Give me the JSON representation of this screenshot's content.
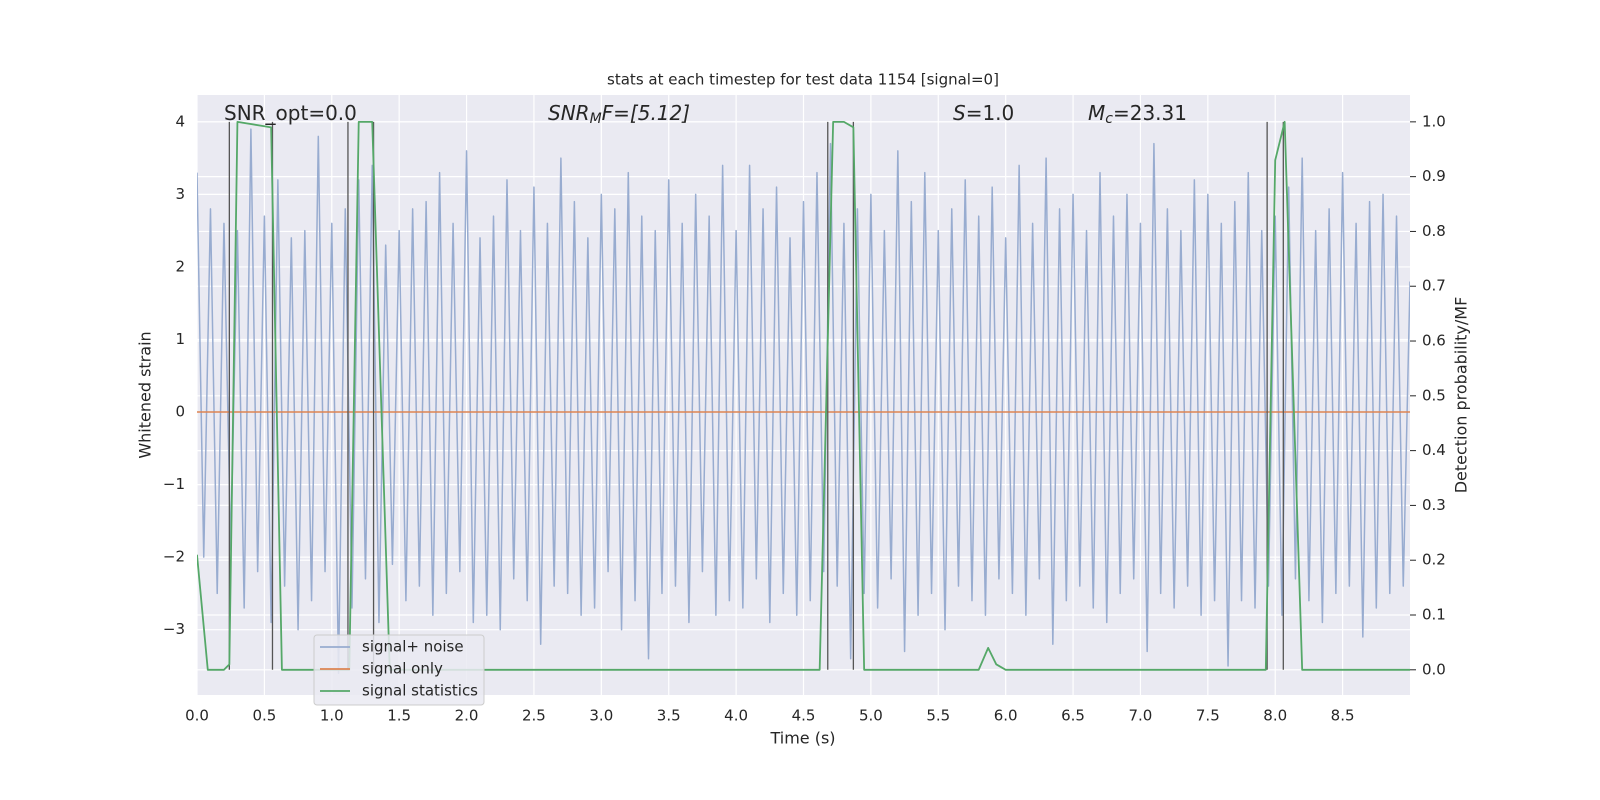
{
  "chart_data": {
    "type": "line",
    "title": "stats at each timestep for test data 1154 [signal=0]",
    "xlabel": "Time (s)",
    "ylabel": "Whitened strain",
    "y2label": "Detection probability/MF",
    "xlim": [
      0,
      9.0
    ],
    "ylim": [
      -3.9,
      4.37
    ],
    "y2lim": [
      -0.046,
      1.049
    ],
    "xticks": [
      {
        "value": 0,
        "label": "0.0"
      },
      0.5,
      {
        "value": 1,
        "label": "1.0"
      },
      1.5,
      {
        "value": 2,
        "label": "2.0"
      },
      2.5,
      {
        "value": 3,
        "label": "3.0"
      },
      3.5,
      {
        "value": 4,
        "label": "4.0"
      },
      4.5,
      {
        "value": 5,
        "label": "5.0"
      },
      5.5,
      {
        "value": 6,
        "label": "6.0"
      },
      6.5,
      {
        "value": 7,
        "label": "7.0"
      },
      7.5,
      {
        "value": 8,
        "label": "8.0"
      },
      8.5
    ],
    "yticks": [
      {
        "value": -3,
        "label": "−3"
      },
      {
        "value": -2,
        "label": "−2"
      },
      {
        "value": -1,
        "label": "−1"
      },
      0,
      1,
      2,
      3,
      4
    ],
    "y2ticks": [
      {
        "value": 0,
        "label": "0.0"
      },
      0.1,
      0.2,
      0.3,
      0.4,
      0.5,
      0.6,
      0.7,
      0.8,
      0.9,
      {
        "value": 1,
        "label": "1.0"
      }
    ],
    "grid": true,
    "legend": "lower left",
    "annotations": [
      {
        "main": "SNR_opt=0.0"
      },
      {
        "main": "SNR",
        "sub": "M",
        "tail": "F=[5.12]"
      },
      {
        "main": "S",
        "tail": "=1.0"
      },
      {
        "main": "M",
        "sub": "c",
        "tail": "=23.31"
      }
    ],
    "vlines": [
      0.24,
      0.56,
      1.12,
      1.31,
      4.68,
      4.87,
      7.94,
      8.06
    ],
    "x": [
      0,
      0.05,
      0.1,
      0.15,
      0.2,
      0.25,
      0.3,
      0.35,
      0.4,
      0.45,
      0.5,
      0.55,
      0.6,
      0.65,
      0.7,
      0.75,
      0.8,
      0.85,
      0.9,
      0.95,
      1,
      1.05,
      1.1,
      1.15,
      1.2,
      1.25,
      1.3,
      1.35,
      1.4,
      1.45,
      1.5,
      1.55,
      1.6,
      1.65,
      1.7,
      1.75,
      1.8,
      1.85,
      1.9,
      1.95,
      2,
      2.05,
      2.1,
      2.15,
      2.2,
      2.25,
      2.3,
      2.35,
      2.4,
      2.45,
      2.5,
      2.55,
      2.6,
      2.65,
      2.7,
      2.75,
      2.8,
      2.85,
      2.9,
      2.95,
      3,
      3.05,
      3.1,
      3.15,
      3.2,
      3.25,
      3.3,
      3.35,
      3.4,
      3.45,
      3.5,
      3.55,
      3.6,
      3.65,
      3.7,
      3.75,
      3.8,
      3.85,
      3.9,
      3.95,
      4,
      4.05,
      4.1,
      4.15,
      4.2,
      4.25,
      4.3,
      4.35,
      4.4,
      4.45,
      4.5,
      4.55,
      4.6,
      4.65,
      4.7,
      4.75,
      4.8,
      4.85,
      4.9,
      4.95,
      5,
      5.05,
      5.1,
      5.15,
      5.2,
      5.25,
      5.3,
      5.35,
      5.4,
      5.45,
      5.5,
      5.55,
      5.6,
      5.65,
      5.7,
      5.75,
      5.8,
      5.85,
      5.9,
      5.95,
      6,
      6.05,
      6.1,
      6.15,
      6.2,
      6.25,
      6.3,
      6.35,
      6.4,
      6.45,
      6.5,
      6.55,
      6.6,
      6.65,
      6.7,
      6.75,
      6.8,
      6.85,
      6.9,
      6.95,
      7,
      7.05,
      7.1,
      7.15,
      7.2,
      7.25,
      7.3,
      7.35,
      7.4,
      7.45,
      7.5,
      7.55,
      7.6,
      7.65,
      7.7,
      7.75,
      7.8,
      7.85,
      7.9,
      7.95,
      8,
      8.05,
      8.1,
      8.15,
      8.2,
      8.25,
      8.3,
      8.35,
      8.4,
      8.45,
      8.5,
      8.55,
      8.6,
      8.65,
      8.7,
      8.75,
      8.8,
      8.85,
      8.9,
      8.95,
      9
    ],
    "series": [
      {
        "name": "signal+ noise",
        "color": "#98acd0",
        "values": [
          3.3,
          -2.0,
          2.8,
          -2.5,
          2.6,
          -1.9,
          2.5,
          -2.7,
          3.9,
          -2.2,
          2.7,
          -2.9,
          3.2,
          -2.4,
          2.4,
          -3.0,
          2.5,
          -2.6,
          3.8,
          -2.2,
          2.6,
          -3.6,
          2.8,
          -2.7,
          3.2,
          -2.3,
          3.4,
          -2.9,
          2.3,
          -2.1,
          2.5,
          -2.6,
          2.8,
          -2.4,
          2.9,
          -2.8,
          3.3,
          -2.5,
          2.6,
          -2.2,
          3.6,
          -2.9,
          2.4,
          -2.8,
          2.7,
          -3.0,
          3.2,
          -2.3,
          2.5,
          -2.6,
          3.1,
          -3.2,
          2.6,
          -2.4,
          3.5,
          -2.5,
          2.9,
          -2.8,
          2.4,
          -2.7,
          3.0,
          -2.2,
          2.8,
          -3.0,
          3.3,
          -2.6,
          2.7,
          -3.4,
          2.5,
          -2.5,
          3.2,
          -2.4,
          2.6,
          -2.9,
          3.0,
          -2.2,
          2.7,
          -2.8,
          3.4,
          -2.6,
          2.5,
          -2.7,
          3.4,
          -2.3,
          2.8,
          -2.9,
          3.1,
          -2.5,
          2.4,
          -2.8,
          2.9,
          -2.6,
          3.3,
          -2.2,
          3.7,
          -2.4,
          2.6,
          -3.4,
          2.8,
          -2.5,
          3.0,
          -2.7,
          2.5,
          -2.3,
          3.6,
          -3.3,
          2.9,
          -2.8,
          3.3,
          -2.5,
          2.5,
          -3.0,
          2.8,
          -2.4,
          3.2,
          -2.6,
          2.7,
          -2.8,
          3.1,
          -2.3,
          2.4,
          -2.5,
          3.4,
          -2.8,
          2.6,
          -2.3,
          3.5,
          -3.2,
          2.8,
          -2.6,
          3.0,
          -2.4,
          2.5,
          -2.7,
          3.3,
          -2.9,
          2.7,
          -2.5,
          3.0,
          -2.3,
          2.6,
          -3.3,
          3.7,
          -2.5,
          2.8,
          -2.7,
          2.5,
          -2.4,
          3.2,
          -2.8,
          3.0,
          -2.6,
          2.6,
          -3.5,
          2.9,
          -2.6,
          3.3,
          -2.7,
          2.5,
          -2.4,
          2.7,
          -2.8,
          3.1,
          -2.3,
          3.5,
          -2.6,
          2.5,
          -2.9,
          2.8,
          -2.5,
          3.3,
          -2.4,
          2.6,
          -3.1,
          2.9,
          -2.7,
          3.0,
          -2.5,
          2.7,
          -2.4,
          1.8
        ]
      },
      {
        "name": "signal only",
        "color": "#dd8452",
        "x": [
          0,
          9.0
        ],
        "values": [
          0,
          0
        ]
      },
      {
        "name": "signal statistics",
        "color": "#55a868",
        "axis": "y2",
        "x": [
          0,
          0.08,
          0.2,
          0.24,
          0.3,
          0.55,
          0.63,
          1.13,
          1.2,
          1.3,
          1.43,
          4.62,
          4.72,
          4.8,
          4.87,
          4.95,
          5.8,
          5.87,
          5.93,
          6.0,
          7.93,
          8.0,
          8.07,
          8.2,
          9.0
        ],
        "values": [
          0.21,
          0,
          0,
          0.01,
          1,
          0.99,
          0,
          0,
          1,
          1,
          0,
          0,
          1,
          1,
          0.99,
          0,
          0,
          0.04,
          0.01,
          0,
          0,
          0.93,
          1,
          0,
          0
        ]
      }
    ]
  }
}
